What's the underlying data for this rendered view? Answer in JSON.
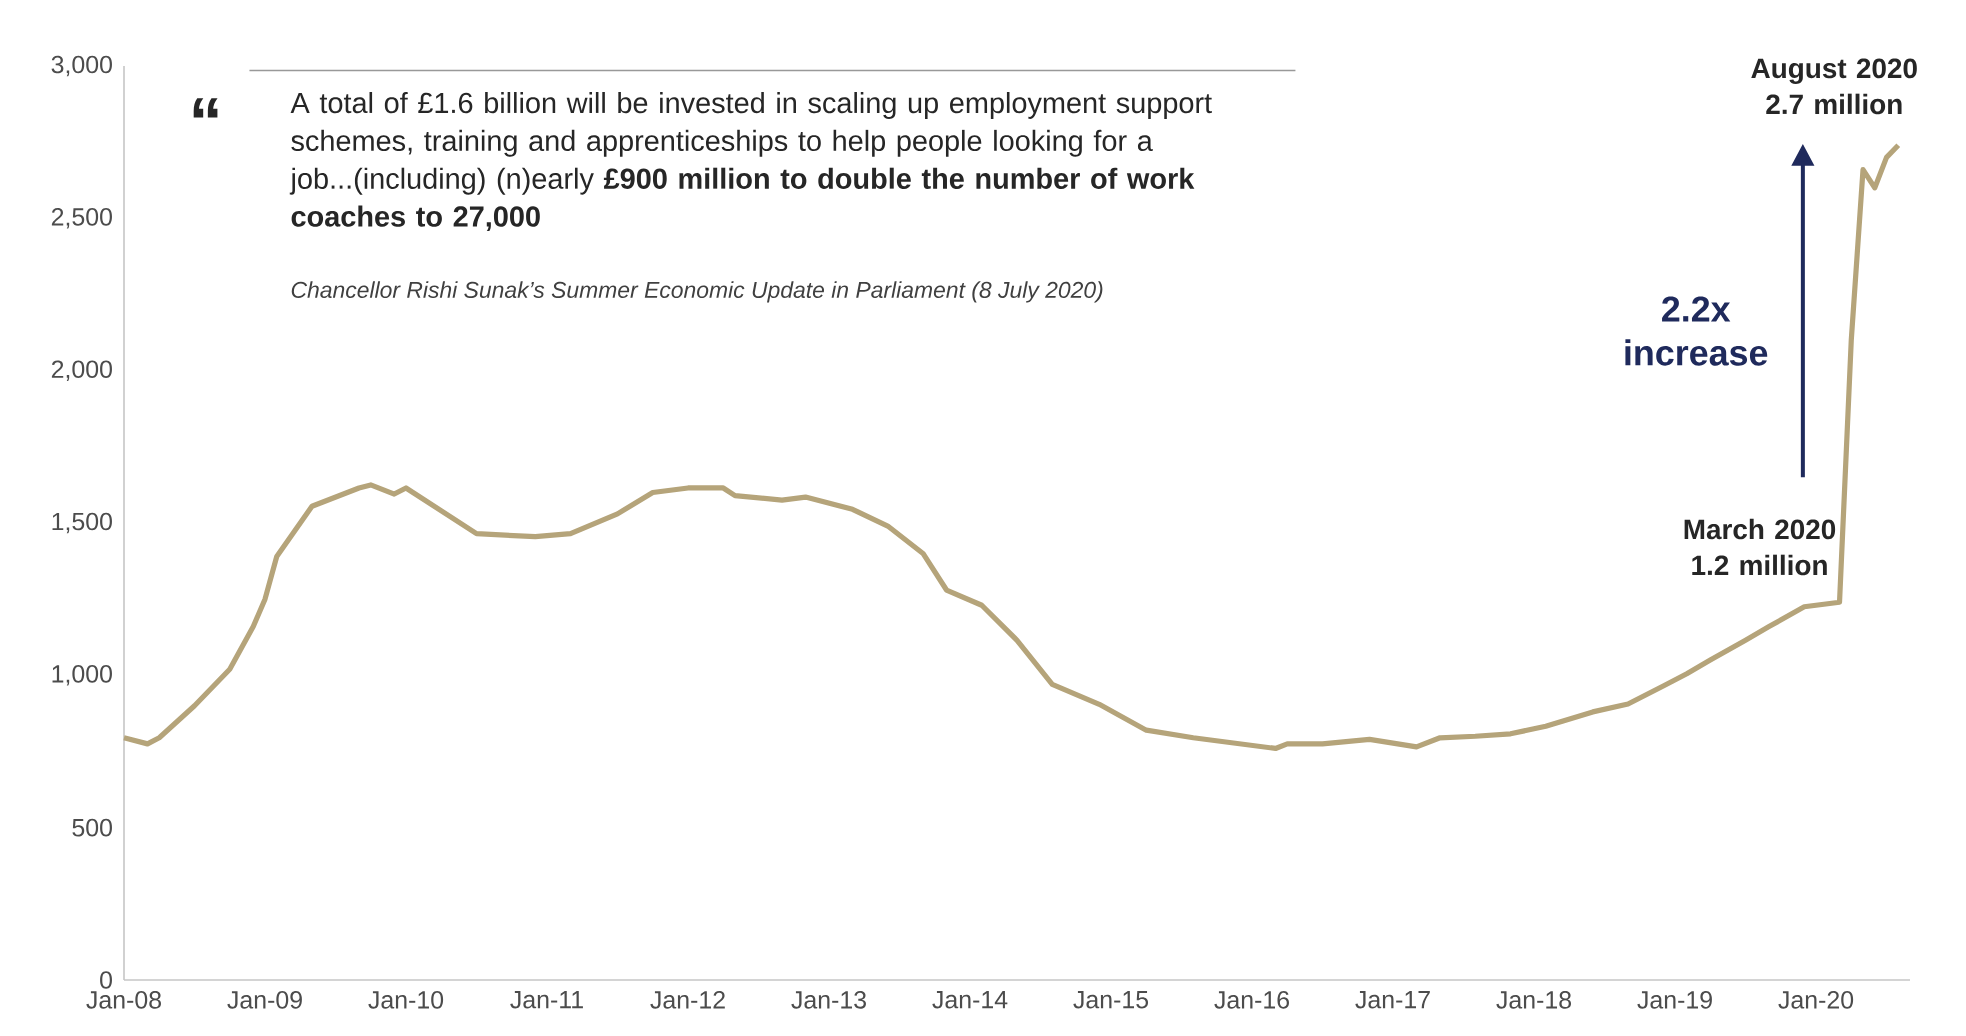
{
  "chart_data": {
    "type": "line",
    "color": "#b5a47a",
    "x": [
      "2008-01",
      "2008-03",
      "2008-04",
      "2008-07",
      "2008-10",
      "2008-12",
      "2009-01",
      "2009-02",
      "2009-05",
      "2009-09",
      "2009-10",
      "2009-12",
      "2010-01",
      "2010-07",
      "2010-12",
      "2011-03",
      "2011-07",
      "2011-10",
      "2012-01",
      "2012-04",
      "2012-05",
      "2012-09",
      "2012-11",
      "2013-03",
      "2013-06",
      "2013-09",
      "2013-11",
      "2014-02",
      "2014-05",
      "2014-08",
      "2014-12",
      "2015-04",
      "2015-08",
      "2015-12",
      "2016-03",
      "2016-04",
      "2016-07",
      "2016-11",
      "2017-03",
      "2017-05",
      "2017-08",
      "2017-11",
      "2018-02",
      "2018-06",
      "2018-09",
      "2018-12",
      "2019-02",
      "2019-04",
      "2019-07",
      "2019-09",
      "2019-12",
      "2020-02",
      "2020-03",
      "2020-04",
      "2020-05",
      "2020-06",
      "2020-07",
      "2020-08"
    ],
    "values": [
      795,
      775,
      795,
      900,
      1020,
      1160,
      1250,
      1390,
      1555,
      1615,
      1625,
      1595,
      1615,
      1465,
      1455,
      1465,
      1530,
      1600,
      1615,
      1615,
      1590,
      1575,
      1585,
      1545,
      1490,
      1400,
      1280,
      1230,
      1115,
      970,
      905,
      820,
      795,
      775,
      760,
      775,
      775,
      790,
      765,
      795,
      800,
      808,
      833,
      880,
      906,
      965,
      1005,
      1050,
      1115,
      1160,
      1225,
      1235,
      1240,
      2100,
      2660,
      2600,
      2700,
      2740
    ],
    "xlim": [
      "2008-01",
      "2020-09"
    ],
    "xticks": [
      {
        "value": "2008-01",
        "label": "Jan-08"
      },
      {
        "value": "2009-01",
        "label": "Jan-09"
      },
      {
        "value": "2010-01",
        "label": "Jan-10"
      },
      {
        "value": "2011-01",
        "label": "Jan-11"
      },
      {
        "value": "2012-01",
        "label": "Jan-12"
      },
      {
        "value": "2013-01",
        "label": "Jan-13"
      },
      {
        "value": "2014-01",
        "label": "Jan-14"
      },
      {
        "value": "2015-01",
        "label": "Jan-15"
      },
      {
        "value": "2016-01",
        "label": "Jan-16"
      },
      {
        "value": "2017-01",
        "label": "Jan-17"
      },
      {
        "value": "2018-01",
        "label": "Jan-18"
      },
      {
        "value": "2019-01",
        "label": "Jan-19"
      },
      {
        "value": "2020-01",
        "label": "Jan-20"
      }
    ],
    "ylim": [
      0,
      3000
    ],
    "yticks": [
      0,
      500,
      {
        "value": 1000,
        "label": "1,000"
      },
      {
        "value": 1500,
        "label": "1,500"
      },
      {
        "value": 2000,
        "label": "2,000"
      },
      {
        "value": 2500,
        "label": "2,500"
      },
      {
        "value": 3000,
        "label": "3,000"
      }
    ],
    "annotations": [
      "“",
      "A total of £1.6 billion will be invested in scaling up employment support schemes, training and apprenticeships to help people looking for a job...(including) (n)early **£900 million to double the number of work coaches to 27,000**",
      "Chancellor Rishi Sunak’s Summer Economic Update in Parliament (8 July 2020)",
      "2.2x increase",
      {
        "text": "March 2020 1.2 million",
        "x": "2020-03",
        "y": 1240
      },
      {
        "text": "August 2020 2.7 million",
        "x": "2020-08",
        "y": 2740
      }
    ]
  }
}
